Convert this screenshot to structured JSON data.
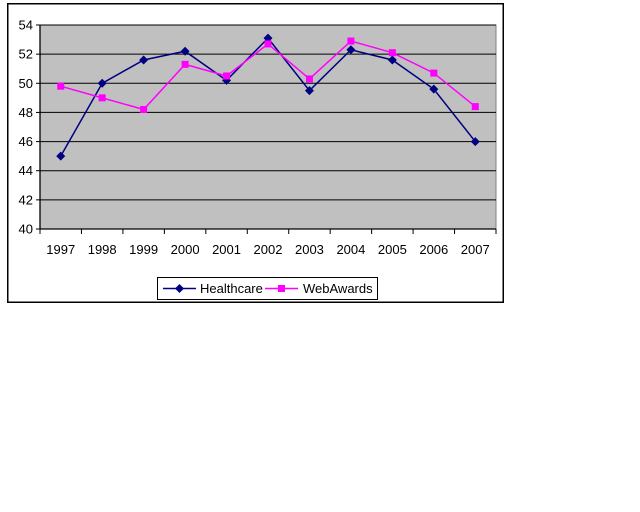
{
  "page": {
    "background": "#FFFFFF"
  },
  "chart_data": {
    "type": "line",
    "title": "",
    "categories": [
      "1997",
      "1998",
      "1999",
      "2000",
      "2001",
      "2002",
      "2003",
      "2004",
      "2005",
      "2006",
      "2007"
    ],
    "series": [
      {
        "name": "Healthcare",
        "color": "#000080",
        "marker": "diamond",
        "values": [
          45.0,
          50.0,
          51.6,
          52.2,
          50.2,
          53.1,
          49.5,
          52.3,
          51.6,
          49.6,
          46.0
        ]
      },
      {
        "name": "WebAwards",
        "color": "#FF00FF",
        "marker": "square",
        "values": [
          49.8,
          49.0,
          48.2,
          51.3,
          50.5,
          52.7,
          50.3,
          52.9,
          52.1,
          50.7,
          48.4
        ]
      }
    ],
    "xlabel": "",
    "ylabel": "",
    "ylim": [
      40,
      54
    ],
    "yticks": [
      40,
      42,
      44,
      46,
      48,
      50,
      52,
      54
    ],
    "grid": "horizontal",
    "legend_position": "bottom",
    "colors": {
      "plot_bg": "#C0C0C0",
      "plot_border": "#808080",
      "gridline": "#000000",
      "axis": "#000000",
      "chart_border": "#000000",
      "legend_bg": "#FFFFFF",
      "legend_border": "#000000",
      "tick_label": "#000000"
    }
  }
}
